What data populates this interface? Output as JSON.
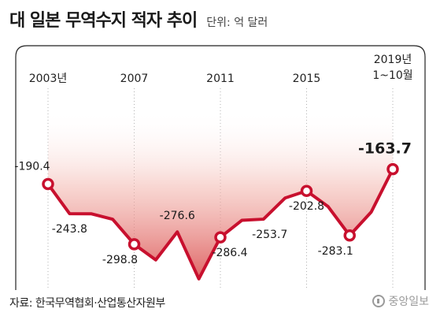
{
  "header": {
    "title": "대 일본 무역수지 적자 추이",
    "unit": "단위: 억 달러"
  },
  "chart_data": {
    "type": "line",
    "title": "대 일본 무역수지 적자 추이",
    "unit": "단위: 억 달러",
    "x": [
      "2003",
      "2004",
      "2005",
      "2006",
      "2007",
      "2008",
      "2009",
      "2010",
      "2011",
      "2012",
      "2013",
      "2014",
      "2015",
      "2016",
      "2017",
      "2018",
      "2019.1-10"
    ],
    "values": [
      -190.4,
      -243.8,
      -244.0,
      -253.8,
      -298.8,
      -327.1,
      -276.6,
      -361.2,
      -286.4,
      -255.7,
      -253.7,
      -215.7,
      -202.8,
      -231.1,
      -283.1,
      -240.8,
      -163.7
    ],
    "x_tick_labels": [
      {
        "index": 0,
        "label": "2003년"
      },
      {
        "index": 4,
        "label": "2007"
      },
      {
        "index": 8,
        "label": "2011"
      },
      {
        "index": 12,
        "label": "2015"
      },
      {
        "index": 16,
        "label": "2019년\n1~10월"
      }
    ],
    "labeled_points": [
      0,
      1,
      4,
      6,
      8,
      10,
      12,
      14,
      16
    ],
    "marked_points": [
      0,
      4,
      8,
      12,
      14,
      16
    ],
    "highlight_index": 16,
    "line_color": "#c8102e",
    "fill_color": "#d94a4a",
    "grid": false,
    "legend": "none"
  },
  "source": "자료: 한국무역협회·산업통산자원부",
  "logo": "중앙일보"
}
